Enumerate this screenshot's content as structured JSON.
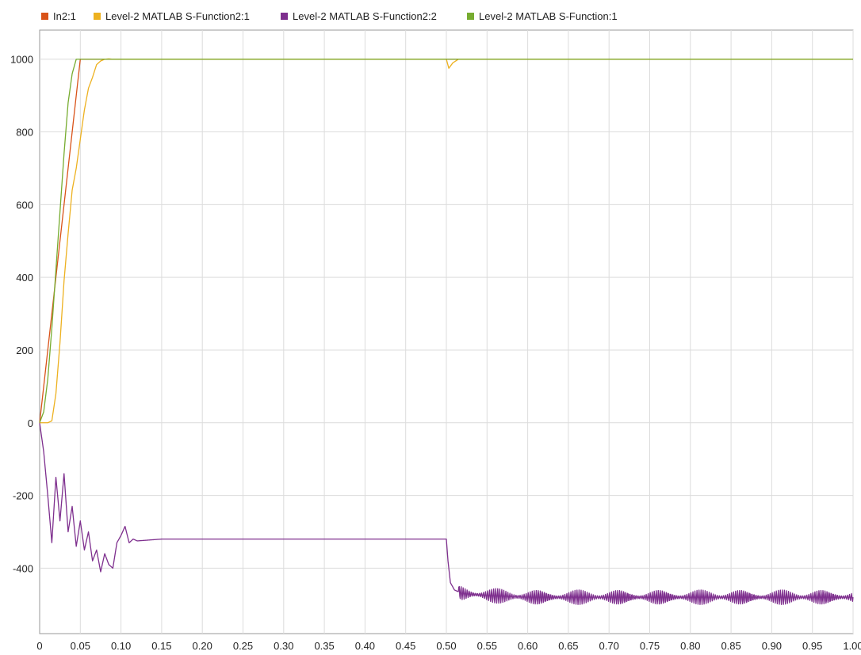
{
  "chart_data": {
    "type": "line",
    "xlim": [
      0,
      1.0
    ],
    "ylim": [
      -580,
      1080
    ],
    "x_ticks": [
      "0",
      "0.05",
      "0.10",
      "0.15",
      "0.20",
      "0.25",
      "0.30",
      "0.35",
      "0.40",
      "0.45",
      "0.50",
      "0.55",
      "0.60",
      "0.65",
      "0.70",
      "0.75",
      "0.80",
      "0.85",
      "0.90",
      "0.95",
      "1.00"
    ],
    "x_tick_values": [
      0,
      0.05,
      0.1,
      0.15,
      0.2,
      0.25,
      0.3,
      0.35,
      0.4,
      0.45,
      0.5,
      0.55,
      0.6,
      0.65,
      0.7,
      0.75,
      0.8,
      0.85,
      0.9,
      0.95,
      1.0
    ],
    "y_ticks": [
      "1000",
      "800",
      "600",
      "400",
      "200",
      "0",
      "-200",
      "-400"
    ],
    "y_tick_values": [
      1000,
      800,
      600,
      400,
      200,
      0,
      -200,
      -400
    ],
    "grid": true,
    "legend_position": "top-left",
    "series": [
      {
        "name": "In2:1",
        "color": "#d95319",
        "x": [
          0,
          0.05,
          0.1,
          0.5,
          1.0
        ],
        "y": [
          0,
          1000,
          1000,
          1000,
          1000
        ]
      },
      {
        "name": "Level-2 MATLAB S-Function2:1",
        "color": "#edb120",
        "x": [
          0,
          0.01,
          0.015,
          0.02,
          0.025,
          0.03,
          0.035,
          0.04,
          0.045,
          0.05,
          0.055,
          0.06,
          0.065,
          0.07,
          0.075,
          0.08,
          0.085,
          0.09,
          0.1,
          0.15,
          0.2,
          0.3,
          0.4,
          0.5,
          0.503,
          0.508,
          0.515,
          0.6,
          0.7,
          0.8,
          0.9,
          1.0
        ],
        "y": [
          0,
          0,
          5,
          80,
          220,
          390,
          520,
          640,
          700,
          780,
          860,
          920,
          950,
          985,
          995,
          1000,
          1001,
          1000,
          1000,
          1000,
          1000,
          1000,
          1000,
          1000,
          975,
          990,
          1000,
          1000,
          1000,
          1000,
          1000,
          1000
        ]
      },
      {
        "name": "Level-2 MATLAB S-Function2:2",
        "color": "#7e2f8e",
        "x": [
          0,
          0.005,
          0.01,
          0.015,
          0.02,
          0.025,
          0.03,
          0.035,
          0.04,
          0.045,
          0.05,
          0.055,
          0.06,
          0.065,
          0.07,
          0.075,
          0.08,
          0.085,
          0.09,
          0.095,
          0.1,
          0.105,
          0.11,
          0.115,
          0.12,
          0.15,
          0.2,
          0.25,
          0.3,
          0.35,
          0.4,
          0.45,
          0.5,
          0.502,
          0.505,
          0.51,
          0.52,
          0.55,
          0.6,
          0.65,
          0.7,
          0.75,
          0.8,
          0.85,
          0.9,
          0.95,
          1.0
        ],
        "y": [
          0,
          -80,
          -200,
          -330,
          -150,
          -270,
          -140,
          -300,
          -230,
          -340,
          -270,
          -350,
          -300,
          -380,
          -350,
          -410,
          -360,
          -390,
          -400,
          -330,
          -310,
          -285,
          -330,
          -320,
          -325,
          -320,
          -320,
          -320,
          -320,
          -320,
          -320,
          -320,
          -320,
          -380,
          -440,
          -460,
          -470,
          -475,
          -480,
          -480,
          -480,
          -480,
          -480,
          -480,
          -480,
          -480,
          -480
        ],
        "oscillation_amplitude_after_0_5": 20
      },
      {
        "name": "Level-2 MATLAB S-Function:1",
        "color": "#77ac30",
        "x": [
          0,
          0.005,
          0.01,
          0.015,
          0.02,
          0.025,
          0.03,
          0.035,
          0.04,
          0.045,
          0.05,
          0.1,
          0.5,
          1.0
        ],
        "y": [
          0,
          30,
          120,
          260,
          420,
          580,
          740,
          880,
          960,
          1000,
          1000,
          1000,
          1000,
          1000
        ]
      }
    ]
  }
}
